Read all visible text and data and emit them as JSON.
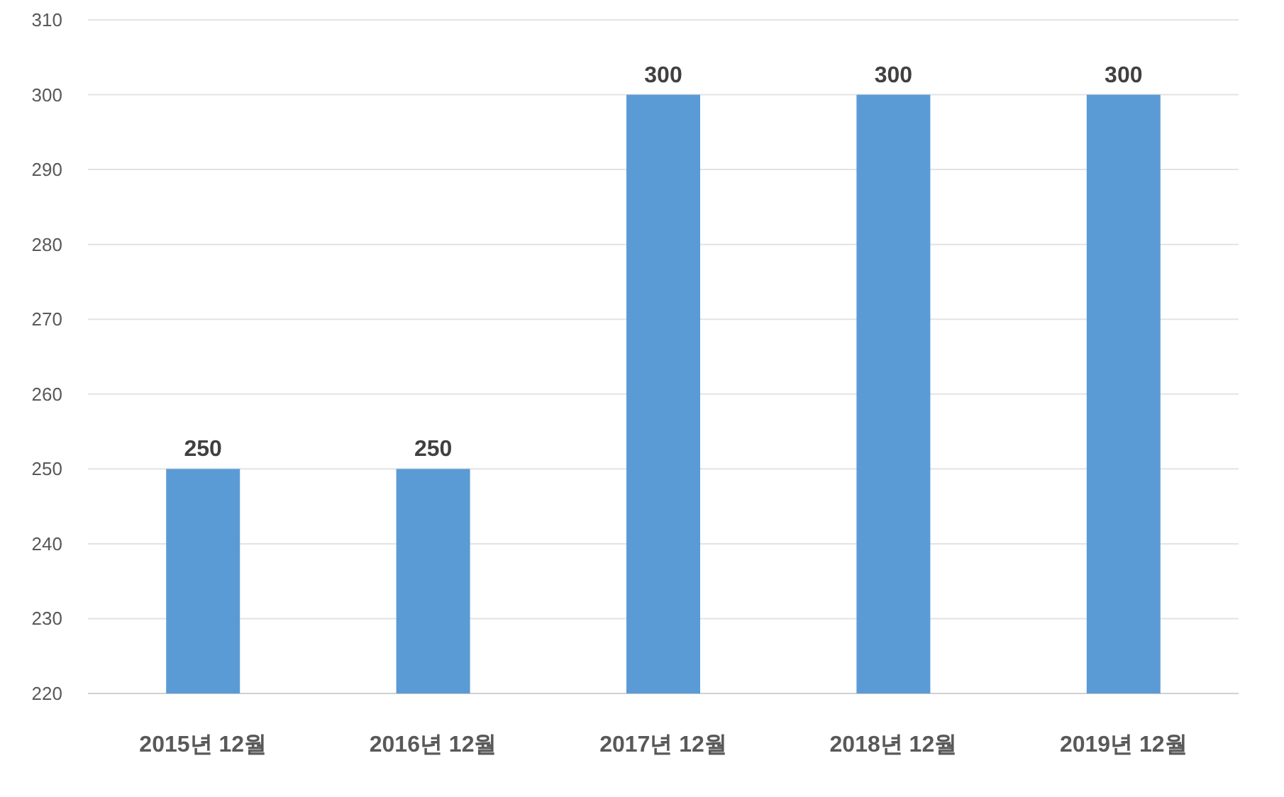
{
  "chart_data": {
    "type": "bar",
    "categories": [
      "2015년 12월",
      "2016년 12월",
      "2017년 12월",
      "2018년 12월",
      "2019년 12월"
    ],
    "values": [
      250,
      250,
      300,
      300,
      300
    ],
    "color": "#5b9bd5",
    "ylim": [
      220,
      310
    ],
    "yticks": [
      220,
      230,
      240,
      250,
      260,
      270,
      280,
      290,
      300,
      310
    ],
    "grid": "y",
    "data_labels": true
  }
}
